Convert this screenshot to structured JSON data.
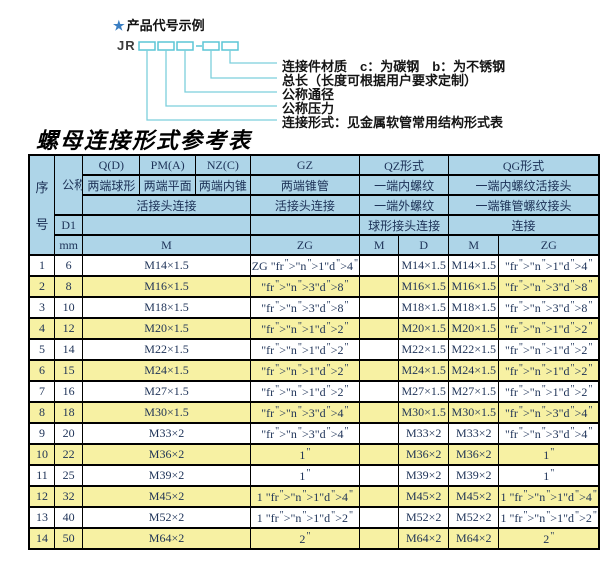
{
  "diagram": {
    "star": "★",
    "title": "产品代号示例",
    "code_prefix": "JR",
    "labels": [
      "连接件材质　c：为碳钢　b：为不锈钢",
      "总长（长度可根据用户要求定制）",
      "公称通径",
      "公称压力",
      "连接形式：见金属软管常用结构形式表"
    ],
    "line_color": "#5cc5d5",
    "star_color": "#3a7ec2"
  },
  "table": {
    "title": "螺母连接形式参考表",
    "header": {
      "seq": "序号",
      "dn": "公称通径",
      "d1": "D1",
      "mm": "mm",
      "col_q": "Q(D)",
      "col_pm": "PM(A)",
      "col_nz": "NZ(C)",
      "col_gz": "GZ",
      "col_qz": "QZ形式",
      "col_qg": "QG形式",
      "q_desc": "两端球形",
      "pm_desc": "两端平面",
      "nz_desc": "两端内锥",
      "gz_desc": "两端锥管",
      "qz_desc1": "一端内螺纹",
      "qg_desc1": "一端内螺纹活接头",
      "union_conn": "活接头连接",
      "gz_conn": "活接头连接",
      "qz_desc2": "一端外螺纹",
      "qg_desc2": "一端锥管螺纹接头",
      "qz_conn": "球形接头连接",
      "qg_conn": "连接",
      "m": "M",
      "zg": "ZG",
      "qz_m": "M",
      "qz_d": "D",
      "qg_m": "M",
      "qg_zg": "ZG"
    },
    "rows": [
      [
        "1",
        "6",
        "M14×1.5",
        "ZG 1/4\"",
        "",
        "M14×1.5",
        "M14×1.5",
        "1/4\""
      ],
      [
        "2",
        "8",
        "M16×1.5",
        "3/8\"",
        "",
        "M16×1.5",
        "M16×1.5",
        "3/8\""
      ],
      [
        "3",
        "10",
        "M18×1.5",
        "3/8\"",
        "",
        "M18×1.5",
        "M18×1.5",
        "3/8\""
      ],
      [
        "4",
        "12",
        "M20×1.5",
        "1/2\"",
        "",
        "M20×1.5",
        "M20×1.5",
        "1/2\""
      ],
      [
        "5",
        "14",
        "M22×1.5",
        "1/2\"",
        "",
        "M22×1.5",
        "M22×1.5",
        "1/2\""
      ],
      [
        "6",
        "15",
        "M24×1.5",
        "1/2\"",
        "",
        "M24×1.5",
        "M24×1.5",
        "1/2\""
      ],
      [
        "7",
        "16",
        "M27×1.5",
        "1/2\"",
        "",
        "M27×1.5",
        "M27×1.5",
        "1/2\""
      ],
      [
        "8",
        "18",
        "M30×1.5",
        "3/4\"",
        "",
        "M30×1.5",
        "M30×1.5",
        "3/4\""
      ],
      [
        "9",
        "20",
        "M33×2",
        "3/4\"",
        "",
        "M33×2",
        "M33×2",
        "3/4\""
      ],
      [
        "10",
        "22",
        "M36×2",
        "1\"",
        "",
        "M36×2",
        "M36×2",
        "1\""
      ],
      [
        "11",
        "25",
        "M39×2",
        "1\"",
        "",
        "M39×2",
        "M39×2",
        "1\""
      ],
      [
        "12",
        "32",
        "M45×2",
        "1 1/4\"",
        "",
        "M45×2",
        "M45×2",
        "1 1/4\""
      ],
      [
        "13",
        "40",
        "M52×2",
        "1 1/2\"",
        "",
        "M52×2",
        "M52×2",
        "1 1/2\""
      ],
      [
        "14",
        "50",
        "M64×2",
        "2\"",
        "",
        "M64×2",
        "M64×2",
        "2\""
      ]
    ],
    "colors": {
      "header_bg": "#aed5e8",
      "row_bg": "#ffffff",
      "row_alt_bg": "#f7f1a3",
      "border": "#000000",
      "text": "#1c3156"
    }
  }
}
